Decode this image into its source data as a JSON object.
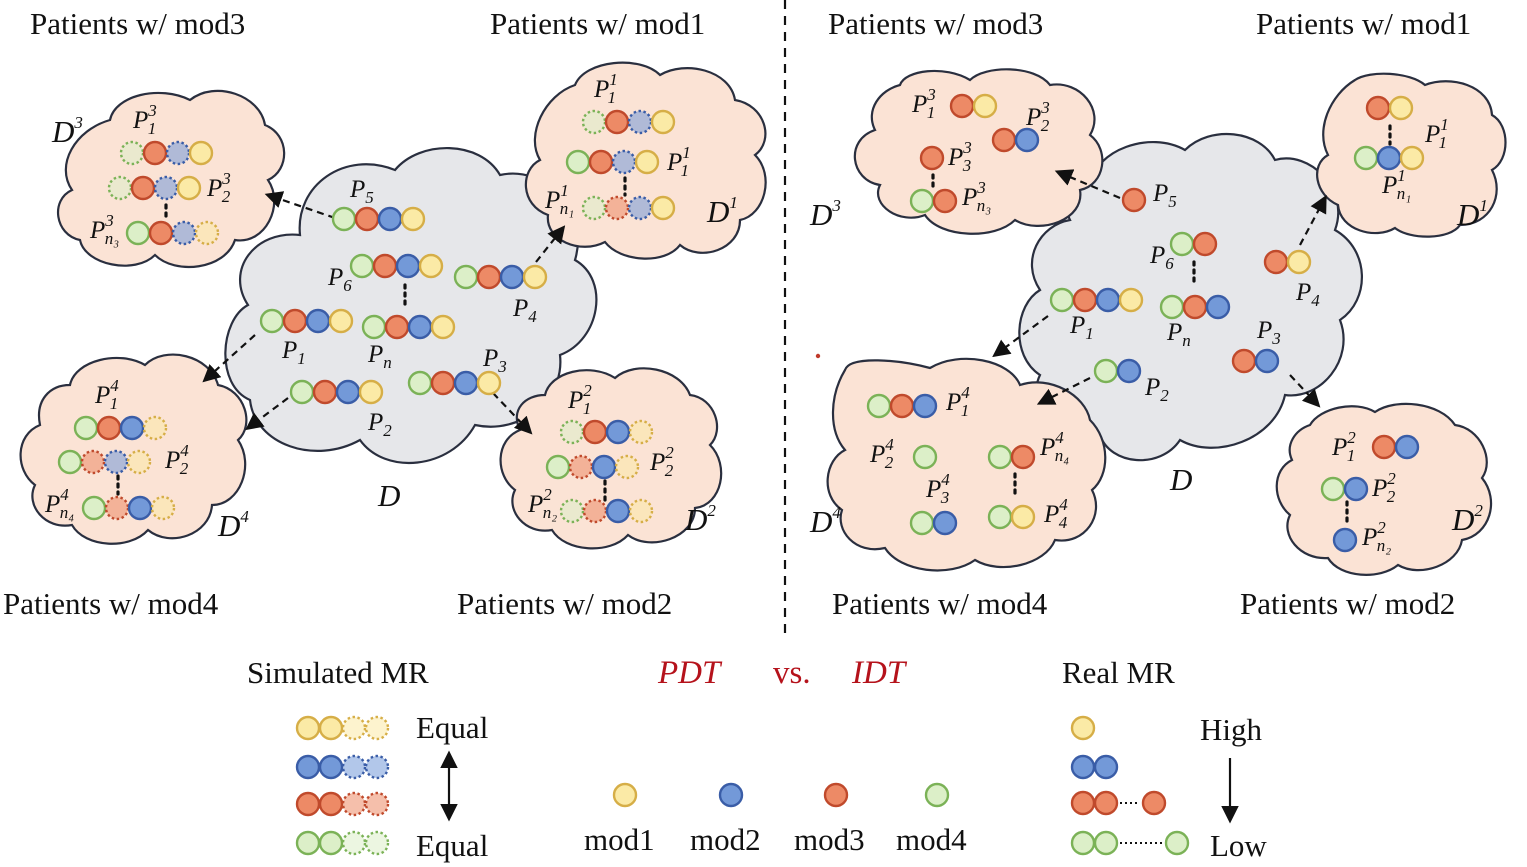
{
  "colors": {
    "mod1": {
      "fill": "#fbeaa6",
      "stroke": "#d6ae47"
    },
    "mod2": {
      "fill": "#7399d8",
      "stroke": "#3a5da7"
    },
    "mod3": {
      "fill": "#ed8a66",
      "stroke": "#c04a2c"
    },
    "mod4": {
      "fill": "#dcefc8",
      "stroke": "#7bb257"
    }
  },
  "left": {
    "groups": {
      "mod3": "Patients w/ mod3",
      "mod1": "Patients w/ mod1",
      "mod4": "Patients w/ mod4",
      "mod2": "Patients w/ mod2"
    },
    "dataset": "D",
    "subsets": {
      "d1": "1",
      "d2": "2",
      "d3": "3",
      "d4": "4"
    },
    "patients": {
      "p1": "1",
      "p2": "2",
      "p3": "3",
      "p4": "4",
      "p5": "5",
      "p6": "6",
      "pn": "n"
    }
  },
  "right": {
    "groups": {
      "mod3": "Patients w/ mod3",
      "mod1": "Patients w/ mod1",
      "mod4": "Patients w/ mod4",
      "mod2": "Patients w/ mod2"
    },
    "dataset": "D"
  },
  "legend": {
    "simulated_title": "Simulated MR",
    "real_title": "Real MR",
    "pdt": "PDT",
    "vs": "vs.",
    "idt": "IDT",
    "equal_top": "Equal",
    "equal_bottom": "Equal",
    "high": "High",
    "low": "Low",
    "mods": [
      "mod1",
      "mod2",
      "mod3",
      "mod4"
    ]
  }
}
